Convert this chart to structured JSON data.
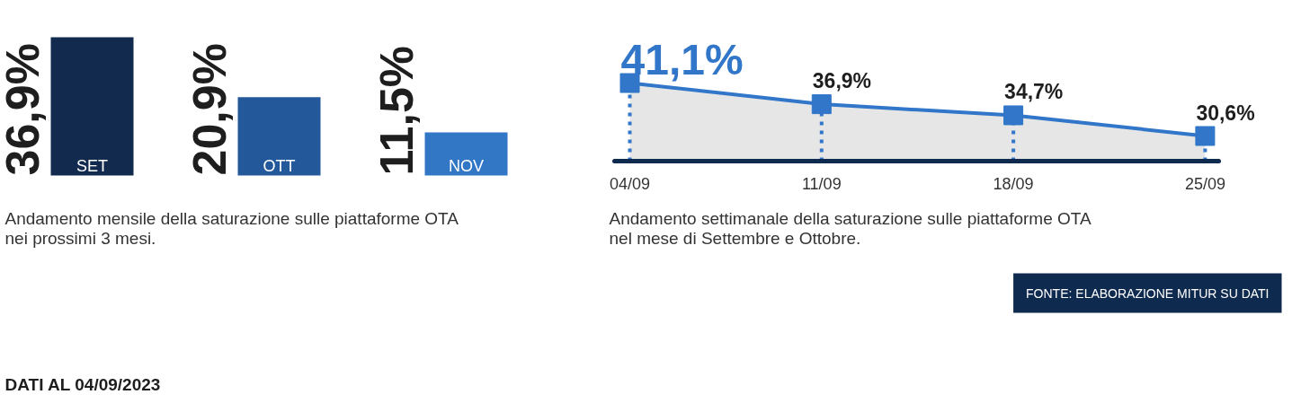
{
  "chart_data": [
    {
      "type": "bar",
      "categories": [
        "SET",
        "OTT",
        "NOV"
      ],
      "values": [
        36.9,
        20.9,
        11.5
      ],
      "colors": [
        "#112a4d",
        "#23589a",
        "#3277c6"
      ],
      "value_labels": [
        "36,9%",
        "20,9%",
        "11,5%"
      ],
      "tick_labels": "x",
      "annotations": [
        "Andamento mensile della saturazione sulle piattaforme OTA",
        "nei prossimi 3 mesi.",
        "DATI AL 04/09/2023"
      ]
    },
    {
      "type": "area",
      "categories": [
        "04/09",
        "11/09",
        "18/09",
        "25/09"
      ],
      "values": [
        41.1,
        36.9,
        34.7,
        30.6
      ],
      "color": "#3176c8",
      "marker": "square",
      "line_style": "solid",
      "value_labels": [
        "41,1%",
        "36,9%",
        "34,7%",
        "30,6%"
      ],
      "tick_labels": "x",
      "annotations": [
        "Andamento settimanale della saturazione sulle piattaforme OTA",
        "nel mese di Settembre e Ottobre.",
        "FONTE: ELABORAZIONE MITUR SU DATI"
      ]
    }
  ]
}
